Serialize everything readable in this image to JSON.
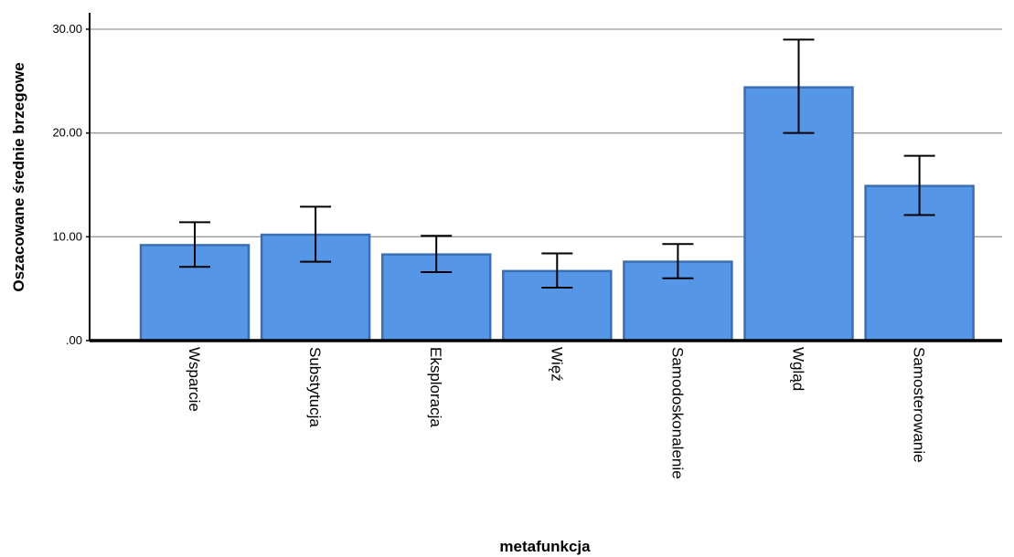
{
  "chart_data": {
    "type": "bar",
    "xlabel": "metafunkcja",
    "ylabel": "Oszacowane średnie brzegowe",
    "categories": [
      "Wsparcie",
      "Substytucja",
      "Eksploracja",
      "Więź",
      "Samodoskonalenie",
      "Wgląd",
      "Samosterowanie"
    ],
    "values": [
      9.2,
      10.2,
      8.3,
      6.7,
      7.6,
      24.4,
      14.9
    ],
    "error_bars": {
      "lower": [
        7.1,
        7.6,
        6.6,
        5.1,
        6.0,
        20.0,
        12.1
      ],
      "upper": [
        11.4,
        12.9,
        10.1,
        8.4,
        9.3,
        29.0,
        17.8
      ]
    },
    "ylim": [
      0,
      30
    ],
    "yticks": [
      0,
      10,
      20,
      30
    ],
    "ytick_labels": [
      ".00",
      "10.00",
      "20.00",
      "30.00"
    ],
    "grid": true,
    "legend": "none",
    "colors": {
      "bar_fill": "#5596e6",
      "bar_stroke": "#3a6fb3",
      "gridline": "#9a9a9a",
      "axis": "#000000",
      "error_bar": "#000000"
    }
  }
}
